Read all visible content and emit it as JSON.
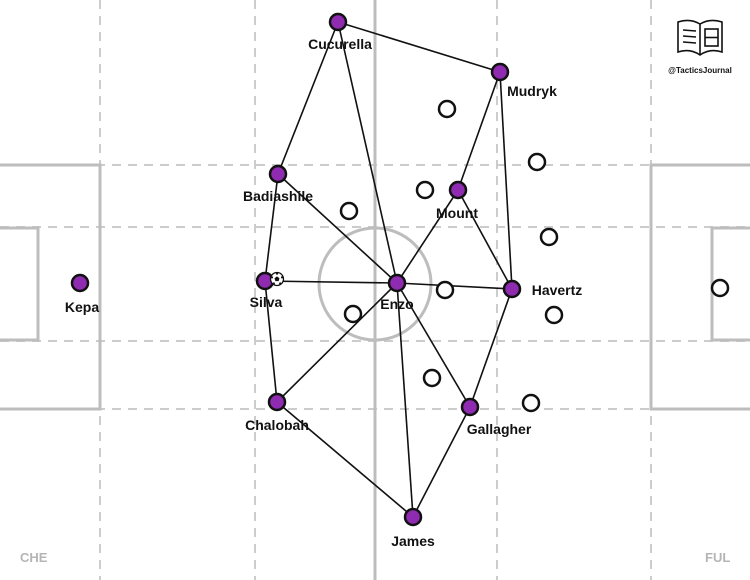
{
  "branding": {
    "handle": "@TacticsJournal"
  },
  "teams": {
    "left": "CHE",
    "right": "FUL"
  },
  "colors": {
    "player_fill": "#8e2bb0",
    "opponent_fill": "#ffffff",
    "line": "#111111",
    "pitch_line": "#bdbdbd",
    "zone_line": "#cccccc"
  },
  "players": [
    {
      "id": "kepa",
      "name": "Kepa"
    },
    {
      "id": "cucurella",
      "name": "Cucurella"
    },
    {
      "id": "badiashile",
      "name": "Badiashile"
    },
    {
      "id": "silva",
      "name": "Silva"
    },
    {
      "id": "chalobah",
      "name": "Chalobah"
    },
    {
      "id": "enzo",
      "name": "Enzo"
    },
    {
      "id": "mount",
      "name": "Mount"
    },
    {
      "id": "mudryk",
      "name": "Mudryk"
    },
    {
      "id": "havertz",
      "name": "Havertz"
    },
    {
      "id": "gallagher",
      "name": "Gallagher"
    },
    {
      "id": "james",
      "name": "James"
    }
  ],
  "passing_links": [
    [
      "cucurella",
      "mudryk"
    ],
    [
      "cucurella",
      "badiashile"
    ],
    [
      "cucurella",
      "enzo"
    ],
    [
      "badiashile",
      "silva"
    ],
    [
      "badiashile",
      "enzo"
    ],
    [
      "silva",
      "enzo"
    ],
    [
      "silva",
      "chalobah"
    ],
    [
      "chalobah",
      "enzo"
    ],
    [
      "chalobah",
      "james"
    ],
    [
      "enzo",
      "mount"
    ],
    [
      "enzo",
      "havertz"
    ],
    [
      "enzo",
      "gallagher"
    ],
    [
      "enzo",
      "james"
    ],
    [
      "mount",
      "mudryk"
    ],
    [
      "mount",
      "havertz"
    ],
    [
      "mudryk",
      "havertz"
    ],
    [
      "havertz",
      "gallagher"
    ],
    [
      "gallagher",
      "james"
    ]
  ],
  "ball_holder": "silva",
  "opponent_count": 11
}
